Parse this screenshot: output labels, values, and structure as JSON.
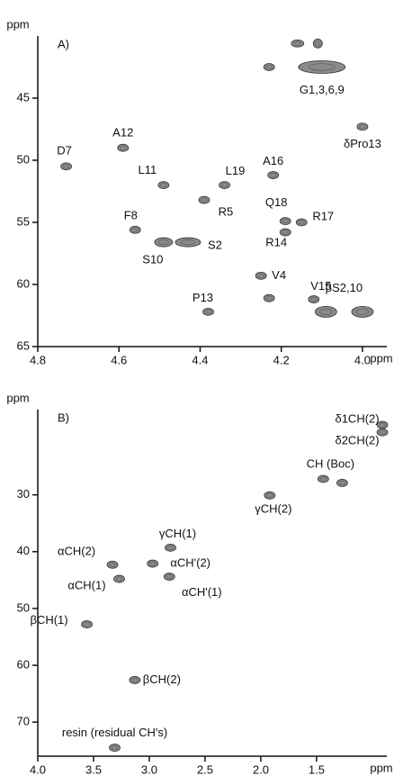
{
  "chart_data": [
    {
      "type": "scatter",
      "panel": "A)",
      "x_label": "ppm",
      "y_label": "ppm",
      "xlim": [
        3.94,
        4.8
      ],
      "ylim": [
        40,
        65
      ],
      "x_inverted": true,
      "y_inverted": true,
      "xticks": [
        4.8,
        4.6,
        4.4,
        4.2,
        {
          "value": 4,
          "label": "4.0"
        }
      ],
      "yticks": [
        45,
        50,
        55,
        60,
        65
      ],
      "color": "#8a8a8a",
      "x": [
        4.1,
        4.16,
        4.11,
        4.23,
        4.0,
        4.73,
        4.59,
        4.49,
        4.34,
        4.39,
        4.22,
        4.19,
        4.15,
        4.19,
        4.56,
        4.43,
        4.49,
        4.25,
        4.38,
        4.12,
        4.09,
        4.0,
        4.23
      ],
      "values": [
        42.5,
        40.6,
        40.6,
        42.5,
        47.3,
        50.5,
        49.0,
        52.0,
        52.0,
        53.2,
        51.2,
        54.9,
        55.0,
        55.8,
        55.6,
        56.6,
        56.6,
        59.3,
        62.2,
        61.2,
        62.2,
        62.2,
        61.1
      ],
      "labels": [
        "G1,3,6,9",
        null,
        null,
        null,
        "δPro13",
        "D7",
        "A12",
        "L11",
        "L19",
        "R5",
        "A16",
        "Q18",
        "R17",
        "R14",
        "F8",
        "S2",
        "S10",
        "V4",
        "P13",
        "V15",
        "βS2,10",
        null,
        null
      ]
    },
    {
      "type": "scatter",
      "panel": "B)",
      "x_label": "ppm",
      "y_label": "ppm",
      "xlim": [
        0.87,
        4.0
      ],
      "ylim": [
        15,
        76
      ],
      "x_inverted": true,
      "y_inverted": true,
      "xticks": [
        {
          "value": 4,
          "label": "4.0"
        },
        3.5,
        {
          "value": 3,
          "label": "3.0"
        },
        2.5,
        {
          "value": 2,
          "label": "2.0"
        },
        1.5
      ],
      "yticks": [
        30,
        40,
        50,
        60,
        70
      ],
      "color": "#8a8a8a",
      "x": [
        0.91,
        0.91,
        1.44,
        1.27,
        1.92,
        2.81,
        2.97,
        3.33,
        3.27,
        2.82,
        3.56,
        3.13,
        3.31
      ],
      "values": [
        17.7,
        19.0,
        27.2,
        27.9,
        30.1,
        39.3,
        42.1,
        42.3,
        44.8,
        44.4,
        52.8,
        62.6,
        74.5
      ],
      "labels": [
        "δ1CH(2)",
        "δ2CH(2)",
        "CH (Boc)",
        null,
        "γCH(2)",
        "γCH(1)",
        "αCH'(2)",
        "αCH(2)",
        "αCH(1)",
        "αCH'(1)",
        "βCH(1)",
        "βCH(2)",
        "resin (residual CH's)"
      ]
    }
  ]
}
